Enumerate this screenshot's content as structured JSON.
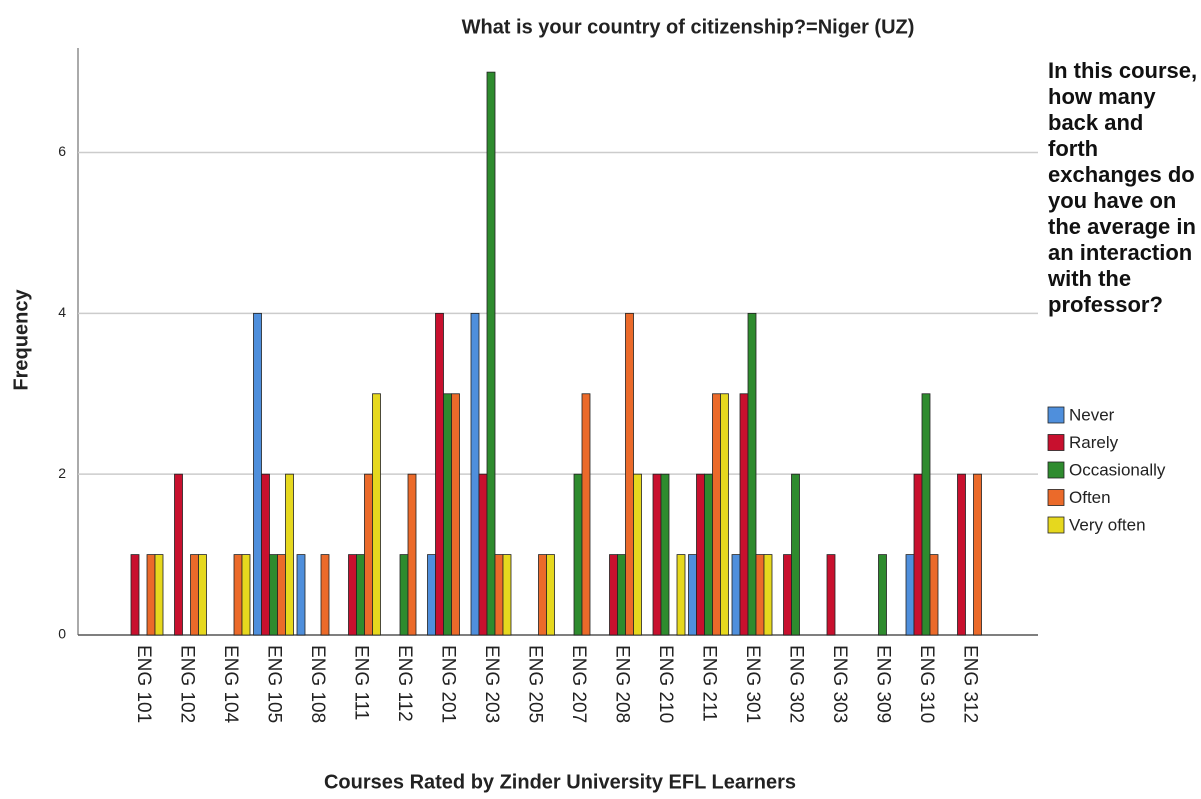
{
  "chart_data": {
    "type": "bar",
    "title": "What is your country of citizenship?=Niger (UZ)",
    "x_label": "Courses Rated by Zinder University EFL Learners",
    "y_label": "Frequency",
    "legend_title": "In this course, how many back and forth exchanges do you have on the average in an interaction with the professor?",
    "categories": [
      "ENG 101",
      "ENG 102",
      "ENG 104",
      "ENG 105",
      "ENG 108",
      "ENG 111",
      "ENG 112",
      "ENG 201",
      "ENG 203",
      "ENG 205",
      "ENG 207",
      "ENG 208",
      "ENG 210",
      "ENG 211",
      "ENG 301",
      "ENG 302",
      "ENG 303",
      "ENG 309",
      "ENG 310",
      "ENG 312"
    ],
    "series": [
      {
        "name": "Never",
        "color": "#4f8fdc",
        "values": [
          0,
          0,
          0,
          4,
          1,
          0,
          0,
          1,
          4,
          0,
          0,
          0,
          0,
          1,
          1,
          0,
          0,
          0,
          1,
          0
        ]
      },
      {
        "name": "Rarely",
        "color": "#c8102e",
        "values": [
          1,
          2,
          0,
          2,
          0,
          1,
          0,
          4,
          2,
          0,
          0,
          1,
          2,
          2,
          3,
          1,
          1,
          0,
          2,
          2
        ]
      },
      {
        "name": "Occasionally",
        "color": "#2e8b2e",
        "values": [
          0,
          0,
          0,
          1,
          0,
          1,
          1,
          3,
          7,
          0,
          2,
          1,
          2,
          2,
          4,
          2,
          0,
          1,
          3,
          0
        ]
      },
      {
        "name": "Often",
        "color": "#eb6a2a",
        "values": [
          1,
          1,
          1,
          1,
          1,
          2,
          2,
          3,
          1,
          1,
          3,
          4,
          0,
          3,
          1,
          0,
          0,
          0,
          1,
          2
        ]
      },
      {
        "name": "Very often",
        "color": "#e6d81e",
        "values": [
          1,
          1,
          1,
          2,
          0,
          3,
          0,
          0,
          1,
          1,
          0,
          2,
          1,
          3,
          1,
          0,
          0,
          0,
          0,
          0
        ]
      }
    ],
    "ylim": [
      0,
      7.3
    ],
    "yticks": [
      0,
      2,
      4,
      6
    ],
    "grid": true,
    "legend": "right"
  }
}
